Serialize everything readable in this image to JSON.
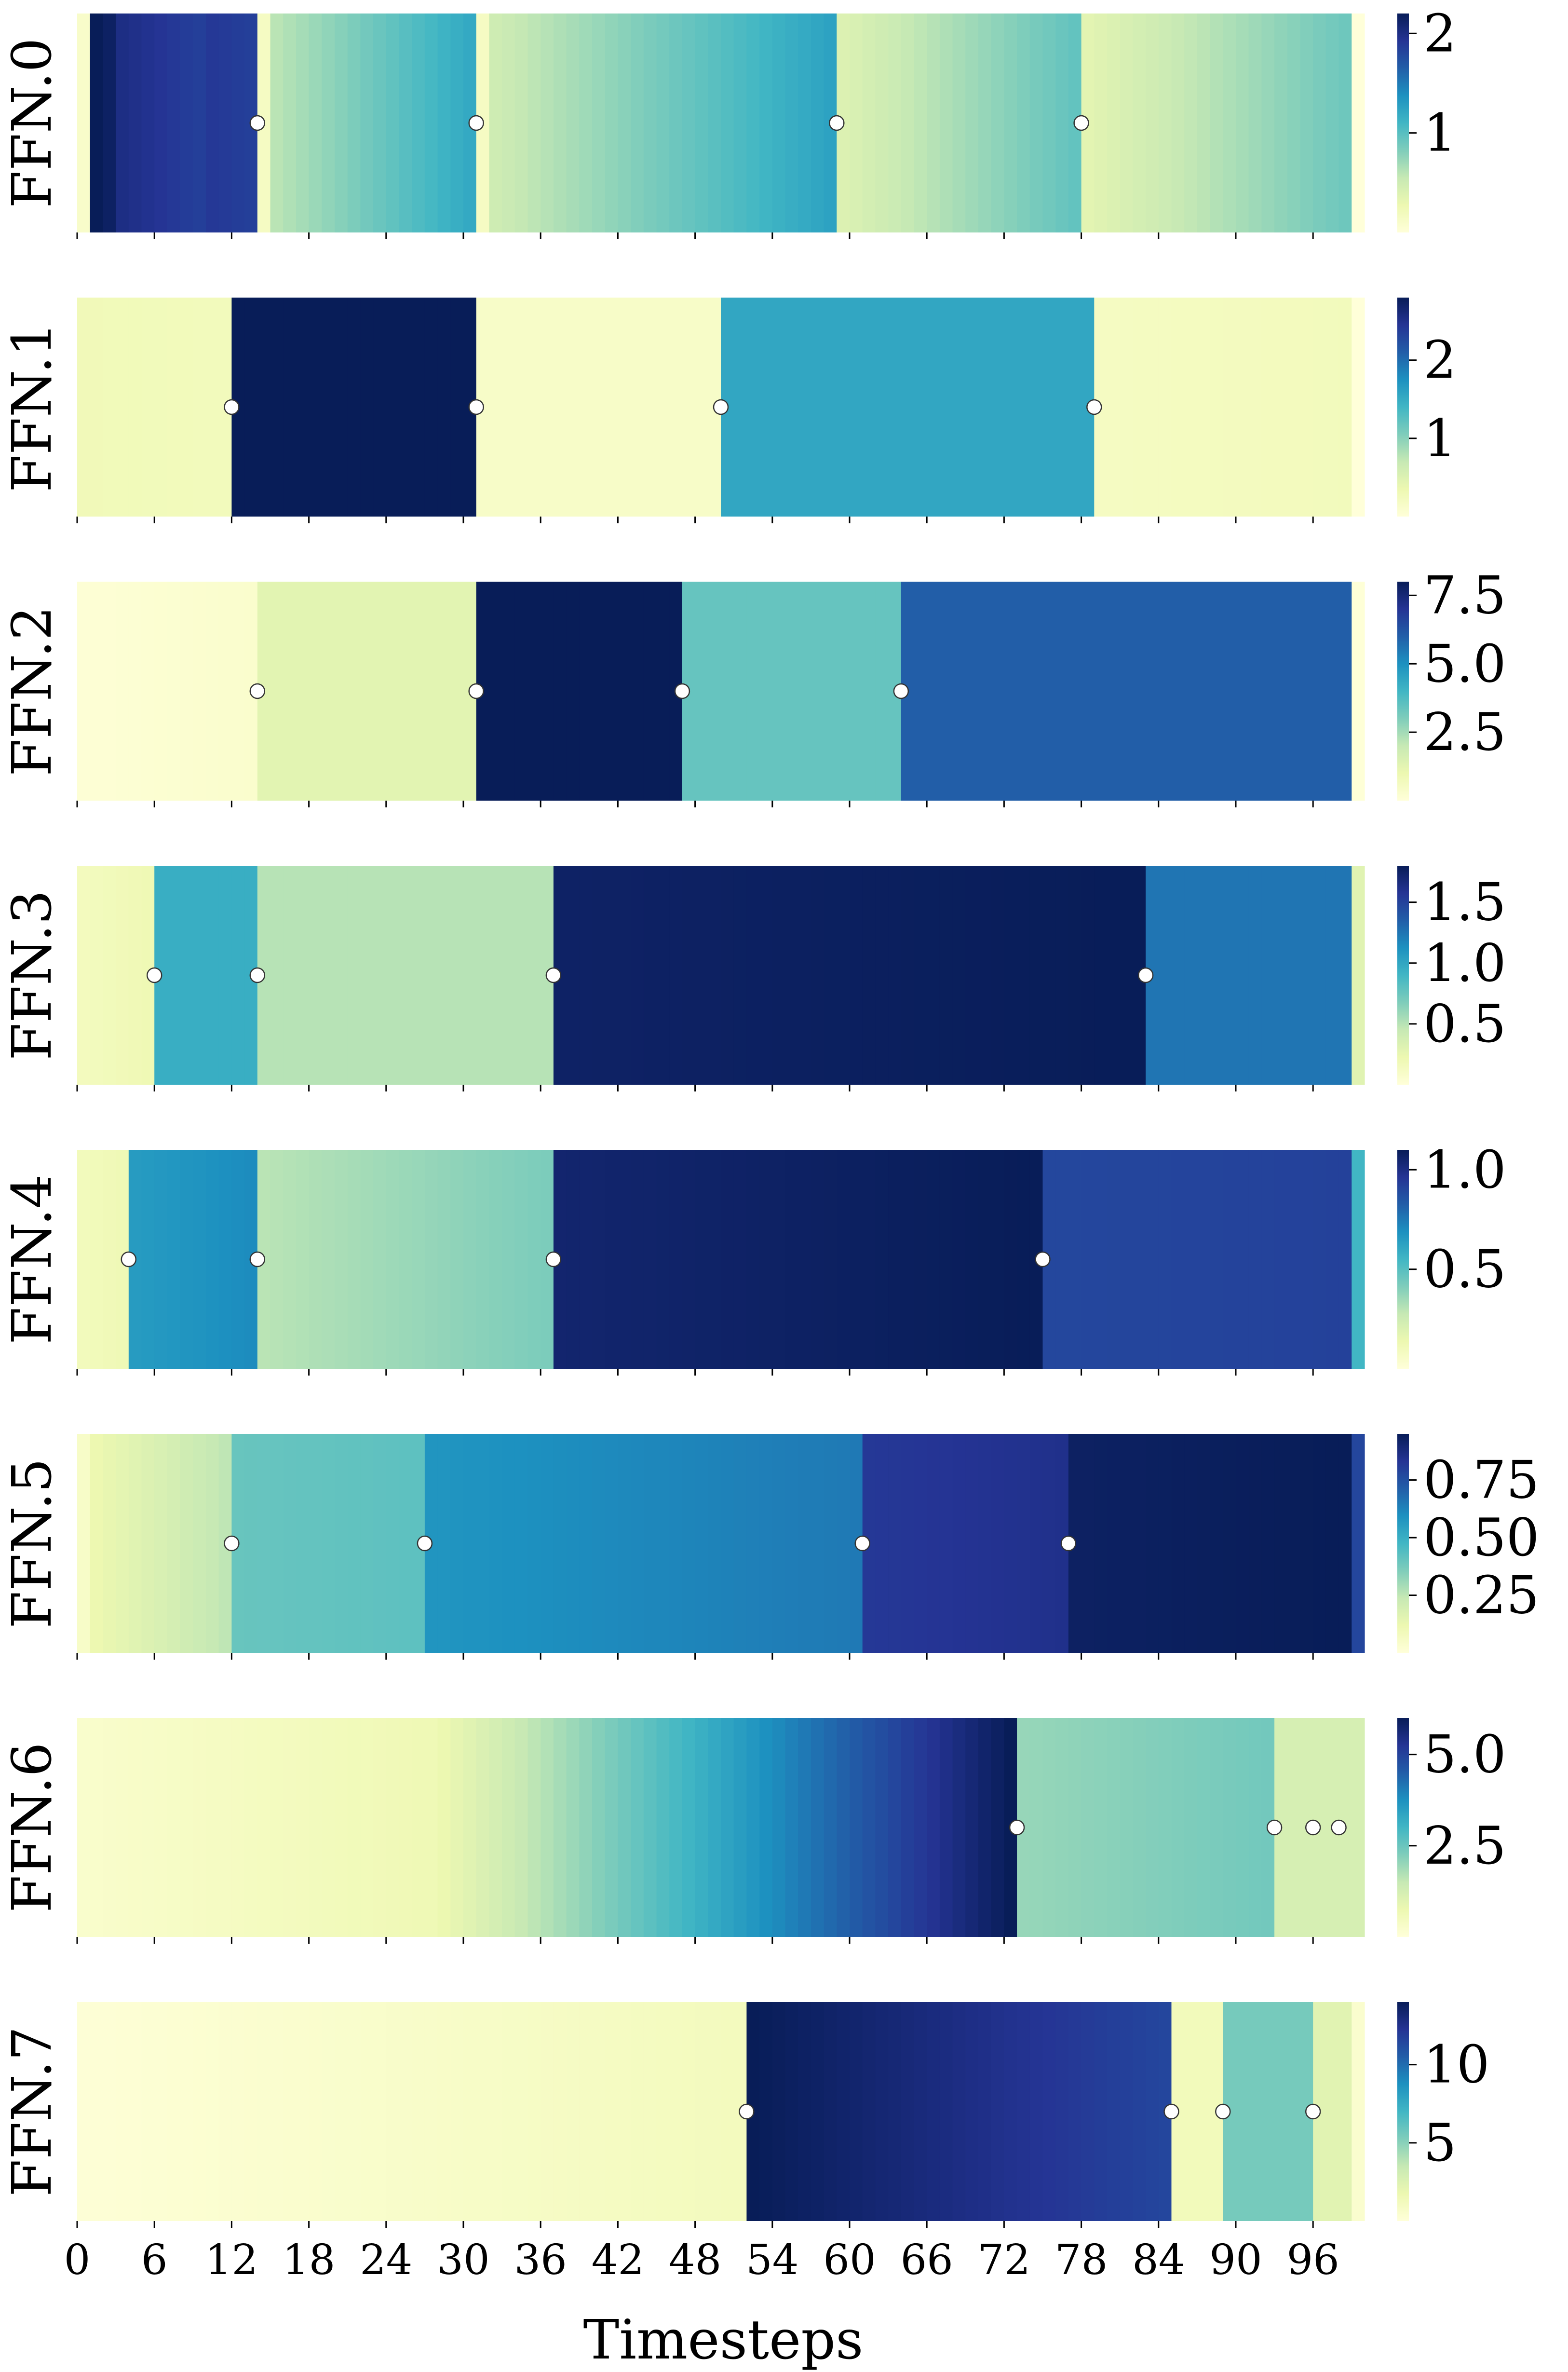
{
  "chart_data": {
    "type": "heatmap",
    "xlabel": "Timesteps",
    "x_range": [
      0,
      99
    ],
    "x_ticks": [
      "0",
      "6",
      "12",
      "18",
      "24",
      "30",
      "36",
      "42",
      "48",
      "54",
      "60",
      "66",
      "72",
      "78",
      "84",
      "90",
      "96"
    ],
    "colormap": [
      "#ffffd9",
      "#edf8b1",
      "#c7e9b4",
      "#7fcdbb",
      "#41b6c4",
      "#1d91c0",
      "#225ea8",
      "#253494",
      "#081d58"
    ],
    "marker_color": "#ffffff",
    "rows": [
      {
        "label": "FFN.0",
        "vmin": 0.0,
        "vmax": 2.2,
        "cb_ticks": [
          {
            "value": 1,
            "label": "1"
          },
          {
            "value": 2,
            "label": "2"
          }
        ],
        "markers": [
          14,
          31,
          59,
          78
        ],
        "segments": [
          {
            "from": 0,
            "to": 1,
            "v0": 0.1,
            "v1": 0.1
          },
          {
            "from": 1,
            "to": 3,
            "v0": 2.2,
            "v1": 2.15
          },
          {
            "from": 3,
            "to": 10,
            "v0": 2.0,
            "v1": 1.85
          },
          {
            "from": 10,
            "to": 14,
            "v0": 1.9,
            "v1": 1.85
          },
          {
            "from": 14,
            "to": 15,
            "v0": 0.15,
            "v1": 0.15
          },
          {
            "from": 15,
            "to": 31,
            "v0": 0.6,
            "v1": 1.2
          },
          {
            "from": 31,
            "to": 32,
            "v0": 0.15,
            "v1": 0.15
          },
          {
            "from": 32,
            "to": 59,
            "v0": 0.5,
            "v1": 1.25
          },
          {
            "from": 59,
            "to": 78,
            "v0": 0.4,
            "v1": 0.95
          },
          {
            "from": 78,
            "to": 99,
            "v0": 0.35,
            "v1": 0.9
          }
        ]
      },
      {
        "label": "FFN.1",
        "vmin": 0.0,
        "vmax": 2.8,
        "cb_ticks": [
          {
            "value": 1,
            "label": "1"
          },
          {
            "value": 2,
            "label": "2"
          }
        ],
        "markers": [
          12,
          31,
          50,
          79
        ],
        "segments": [
          {
            "from": 0,
            "to": 12,
            "v0": 0.28,
            "v1": 0.25
          },
          {
            "from": 12,
            "to": 31,
            "v0": 2.8,
            "v1": 2.8
          },
          {
            "from": 31,
            "to": 50,
            "v0": 0.15,
            "v1": 0.15
          },
          {
            "from": 50,
            "to": 79,
            "v0": 1.55,
            "v1": 1.55
          },
          {
            "from": 79,
            "to": 99,
            "v0": 0.2,
            "v1": 0.25
          }
        ]
      },
      {
        "label": "FFN.2",
        "vmin": 0.0,
        "vmax": 8.0,
        "cb_ticks": [
          {
            "value": 2.5,
            "label": "2.5"
          },
          {
            "value": 5.0,
            "label": "5.0"
          },
          {
            "value": 7.5,
            "label": "7.5"
          }
        ],
        "markers": [
          14,
          31,
          47,
          64
        ],
        "segments": [
          {
            "from": 0,
            "to": 14,
            "v0": 0.1,
            "v1": 0.3
          },
          {
            "from": 14,
            "to": 31,
            "v0": 1.3,
            "v1": 1.3
          },
          {
            "from": 31,
            "to": 47,
            "v0": 8.0,
            "v1": 8.0
          },
          {
            "from": 47,
            "to": 64,
            "v0": 3.4,
            "v1": 3.4
          },
          {
            "from": 64,
            "to": 99,
            "v0": 6.0,
            "v1": 6.0
          },
          {
            "from": 99,
            "to": 100,
            "v0": 0.05,
            "v1": 0.05
          }
        ]
      },
      {
        "label": "FFN.3",
        "vmin": 0.0,
        "vmax": 1.8,
        "cb_ticks": [
          {
            "value": 0.5,
            "label": "0.5"
          },
          {
            "value": 1.0,
            "label": "1.0"
          },
          {
            "value": 1.5,
            "label": "1.5"
          }
        ],
        "markers": [
          6,
          14,
          37,
          83
        ],
        "segments": [
          {
            "from": 0,
            "to": 6,
            "v0": 0.15,
            "v1": 0.2
          },
          {
            "from": 6,
            "to": 14,
            "v0": 0.95,
            "v1": 0.95
          },
          {
            "from": 14,
            "to": 37,
            "v0": 0.5,
            "v1": 0.5
          },
          {
            "from": 37,
            "to": 83,
            "v0": 1.75,
            "v1": 1.8
          },
          {
            "from": 83,
            "to": 99,
            "v0": 1.25,
            "v1": 1.25
          },
          {
            "from": 99,
            "to": 100,
            "v0": 0.3,
            "v1": 0.3
          }
        ]
      },
      {
        "label": "FFN.4",
        "vmin": 0.0,
        "vmax": 1.1,
        "cb_ticks": [
          {
            "value": 0.5,
            "label": "0.5"
          },
          {
            "value": 1.0,
            "label": "1.0"
          }
        ],
        "markers": [
          4,
          14,
          37,
          75
        ],
        "segments": [
          {
            "from": 0,
            "to": 4,
            "v0": 0.1,
            "v1": 0.12
          },
          {
            "from": 4,
            "to": 14,
            "v0": 0.65,
            "v1": 0.7
          },
          {
            "from": 14,
            "to": 37,
            "v0": 0.3,
            "v1": 0.42
          },
          {
            "from": 37,
            "to": 75,
            "v0": 1.05,
            "v1": 1.1
          },
          {
            "from": 75,
            "to": 99,
            "v0": 0.9,
            "v1": 0.92
          },
          {
            "from": 99,
            "to": 100,
            "v0": 0.55,
            "v1": 0.55
          }
        ]
      },
      {
        "label": "FFN.5",
        "vmin": 0.0,
        "vmax": 0.95,
        "cb_ticks": [
          {
            "value": 0.25,
            "label": "0.25"
          },
          {
            "value": 0.5,
            "label": "0.50"
          },
          {
            "value": 0.75,
            "label": "0.75"
          }
        ],
        "markers": [
          12,
          27,
          61,
          77
        ],
        "segments": [
          {
            "from": 0,
            "to": 1,
            "v0": 0.05,
            "v1": 0.05
          },
          {
            "from": 1,
            "to": 12,
            "v0": 0.12,
            "v1": 0.25
          },
          {
            "from": 12,
            "to": 27,
            "v0": 0.4,
            "v1": 0.42
          },
          {
            "from": 27,
            "to": 61,
            "v0": 0.58,
            "v1": 0.65
          },
          {
            "from": 61,
            "to": 77,
            "v0": 0.82,
            "v1": 0.85
          },
          {
            "from": 77,
            "to": 99,
            "v0": 0.93,
            "v1": 0.95
          },
          {
            "from": 99,
            "to": 100,
            "v0": 0.78,
            "v1": 0.78
          }
        ]
      },
      {
        "label": "FFN.6",
        "vmin": 0.0,
        "vmax": 6.0,
        "cb_ticks": [
          {
            "value": 2.5,
            "label": "2.5"
          },
          {
            "value": 5.0,
            "label": "5.0"
          }
        ],
        "markers": [
          73,
          93,
          96,
          98
        ],
        "segments": [
          {
            "from": 0,
            "to": 27,
            "v0": 0.25,
            "v1": 0.65
          },
          {
            "from": 27,
            "to": 73,
            "v0": 0.65,
            "v1": 6.0
          },
          {
            "from": 73,
            "to": 93,
            "v0": 2.0,
            "v1": 2.4
          },
          {
            "from": 93,
            "to": 100,
            "v0": 1.2,
            "v1": 1.2
          }
        ]
      },
      {
        "label": "FFN.7",
        "vmin": 0.0,
        "vmax": 14.0,
        "cb_ticks": [
          {
            "value": 5,
            "label": "5"
          },
          {
            "value": 10,
            "label": "10"
          }
        ],
        "markers": [
          52,
          85,
          89,
          96
        ],
        "segments": [
          {
            "from": 0,
            "to": 52,
            "v0": 0.15,
            "v1": 1.2
          },
          {
            "from": 52,
            "to": 85,
            "v0": 14.0,
            "v1": 11.5
          },
          {
            "from": 85,
            "to": 89,
            "v0": 1.3,
            "v1": 1.3
          },
          {
            "from": 89,
            "to": 96,
            "v0": 5.5,
            "v1": 5.5
          },
          {
            "from": 96,
            "to": 99,
            "v0": 2.3,
            "v1": 2.3
          },
          {
            "from": 99,
            "to": 100,
            "v0": 0.5,
            "v1": 0.5
          }
        ]
      }
    ]
  }
}
